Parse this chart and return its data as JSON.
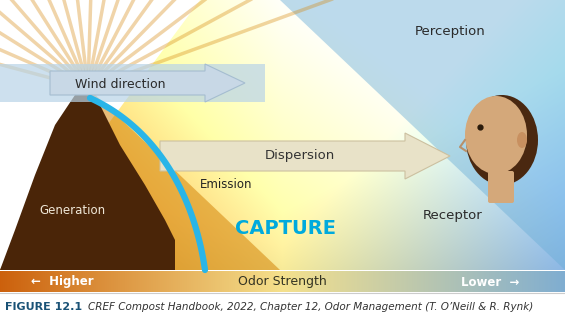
{
  "figure_label": "FIGURE 12.1",
  "figure_caption": "CREF Compost Handbook, 2022, Chapter 12, Odor Management (T. O’Neill & R. Rynk)",
  "wind_direction_text": "Wind direction",
  "dispersion_text": "Dispersion",
  "emission_text": "Emission",
  "generation_text": "Generation",
  "capture_text": "CAPTURE",
  "perception_text": "Perception",
  "receptor_text": "Receptor",
  "odor_strength_text": "Odor Strength",
  "higher_text": "←  Higher",
  "lower_text": "Lower  →",
  "bg_color": "#ffffff",
  "blue_curve_color": "#29b5e8",
  "capture_color": "#00aadd",
  "figure_label_color": "#1a5276"
}
